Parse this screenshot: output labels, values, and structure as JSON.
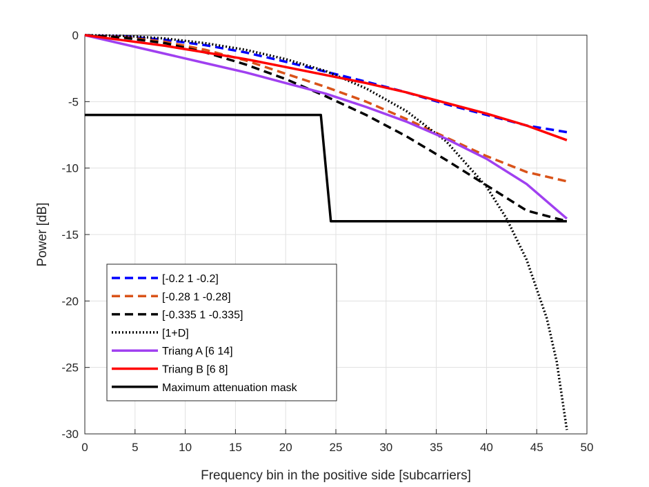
{
  "chart_data": {
    "type": "line",
    "title": "",
    "xlabel": "Frequency bin in the positive side [subcarriers]",
    "ylabel": "Power [dB]",
    "xlim": [
      0,
      50
    ],
    "ylim": [
      -30,
      0
    ],
    "xticks": [
      0,
      5,
      10,
      15,
      20,
      25,
      30,
      35,
      40,
      45,
      50
    ],
    "yticks": [
      0,
      -5,
      -10,
      -15,
      -20,
      -25,
      -30
    ],
    "grid": true,
    "legend_position": "lower-left",
    "series": [
      {
        "name": "[-0.2 1 -0.2]",
        "color": "#0000ff",
        "style": "dashed",
        "x": [
          0,
          4,
          8,
          12,
          16,
          20,
          24,
          28,
          32,
          36,
          40,
          44,
          48
        ],
        "y": [
          0,
          -0.1,
          -0.35,
          -0.75,
          -1.3,
          -2.0,
          -2.75,
          -3.5,
          -4.3,
          -5.2,
          -6.0,
          -6.8,
          -7.3
        ]
      },
      {
        "name": "[-0.28 1 -0.28]",
        "color": "#d95319",
        "style": "dashed",
        "x": [
          0,
          4,
          8,
          12,
          16,
          20,
          24,
          28,
          32,
          36,
          40,
          44,
          48
        ],
        "y": [
          0,
          -0.15,
          -0.5,
          -1.1,
          -1.9,
          -2.9,
          -3.9,
          -5.0,
          -6.3,
          -7.7,
          -9.1,
          -10.3,
          -11.0
        ]
      },
      {
        "name": "[-0.335 1 -0.335]",
        "color": "#000000",
        "style": "dashed",
        "x": [
          0,
          4,
          8,
          12,
          16,
          20,
          24,
          28,
          32,
          36,
          40,
          44,
          48
        ],
        "y": [
          0,
          -0.2,
          -0.6,
          -1.3,
          -2.2,
          -3.3,
          -4.6,
          -6.0,
          -7.6,
          -9.4,
          -11.3,
          -13.2,
          -14.0
        ]
      },
      {
        "name": "[1+D]",
        "color": "#000000",
        "style": "dotted",
        "x": [
          0,
          4,
          8,
          12,
          16,
          20,
          24,
          28,
          32,
          36,
          40,
          42,
          44,
          46,
          47,
          48
        ],
        "y": [
          0,
          -0.05,
          -0.25,
          -0.6,
          -1.1,
          -1.8,
          -2.7,
          -4.0,
          -5.7,
          -8.0,
          -11.4,
          -13.8,
          -16.9,
          -21.3,
          -24.6,
          -29.7
        ]
      },
      {
        "name": "Triang A [6 14]",
        "color": "#a040f0",
        "style": "solid",
        "x": [
          0,
          4,
          8,
          12,
          16,
          20,
          24,
          28,
          32,
          36,
          40,
          44,
          48
        ],
        "y": [
          0,
          -0.7,
          -1.4,
          -2.1,
          -2.8,
          -3.6,
          -4.4,
          -5.4,
          -6.5,
          -7.8,
          -9.3,
          -11.2,
          -13.8
        ]
      },
      {
        "name": "Triang B [6 8]",
        "color": "#ff0000",
        "style": "solid",
        "x": [
          0,
          4,
          8,
          12,
          16,
          20,
          24,
          28,
          32,
          36,
          40,
          44,
          48
        ],
        "y": [
          0,
          -0.4,
          -0.8,
          -1.3,
          -1.8,
          -2.4,
          -3.0,
          -3.6,
          -4.3,
          -5.1,
          -5.9,
          -6.8,
          -7.9
        ]
      },
      {
        "name": "Maximum attenuation mask",
        "color": "#000000",
        "style": "solid",
        "x": [
          0,
          23.5,
          24.5,
          48
        ],
        "y": [
          -6,
          -6,
          -14,
          -14
        ]
      }
    ]
  }
}
